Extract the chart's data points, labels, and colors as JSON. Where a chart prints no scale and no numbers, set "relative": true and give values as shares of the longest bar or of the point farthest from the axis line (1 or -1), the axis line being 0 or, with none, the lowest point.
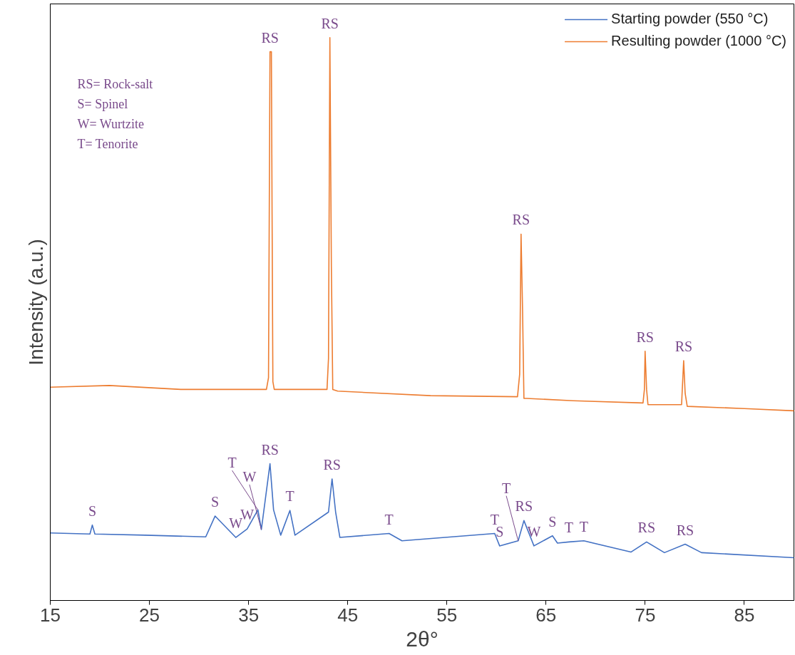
{
  "chart_data": {
    "type": "line",
    "relative": true,
    "xlabel": "2θ°",
    "ylabel": "Intensity (a.u.)",
    "xlim": [
      15,
      90
    ],
    "xticks": [
      15,
      25,
      35,
      45,
      55,
      65,
      75,
      85
    ],
    "grid": false,
    "legend": "top right",
    "line_style": "solid",
    "marker": "none",
    "series": [
      {
        "name": "Starting powder (550 °C)",
        "color": "#4472c4",
        "x": [
          15,
          19.0,
          19.24,
          19.5,
          24.57,
          30.68,
          31.62,
          33.71,
          34.86,
          35.94,
          36.29,
          37.16,
          37.52,
          38.24,
          39.17,
          39.68,
          43.06,
          43.42,
          43.78,
          44.21,
          49.17,
          50.47,
          59.82,
          60.32,
          62.19,
          62.77,
          63.78,
          65.65,
          66.15,
          67.3,
          68.81,
          73.56,
          75.14,
          76.94,
          79.03,
          80.68,
          90
        ],
        "values": [
          0.12,
          0.118,
          0.134,
          0.118,
          0.116,
          0.113,
          0.15,
          0.112,
          0.127,
          0.161,
          0.126,
          0.243,
          0.161,
          0.116,
          0.16,
          0.116,
          0.157,
          0.216,
          0.157,
          0.112,
          0.119,
          0.106,
          0.119,
          0.097,
          0.106,
          0.142,
          0.097,
          0.115,
          0.102,
          0.104,
          0.106,
          0.086,
          0.104,
          0.085,
          0.1,
          0.085,
          0.076
        ]
      },
      {
        "name": "Resulting powder (1000 °C)",
        "color": "#ed7d31",
        "x": [
          15,
          20.97,
          28.17,
          36.8,
          37.01,
          37.16,
          37.3,
          37.37,
          37.45,
          37.59,
          42.91,
          43.06,
          43.2,
          43.35,
          43.49,
          43.99,
          53.35,
          62.12,
          62.34,
          62.48,
          62.63,
          62.77,
          63.06,
          67.73,
          74.78,
          74.92,
          74.99,
          75.14,
          75.28,
          78.67,
          78.74,
          78.88,
          79.03,
          79.24,
          85,
          90
        ],
        "values": [
          0.379,
          0.382,
          0.375,
          0.375,
          0.396,
          0.975,
          0.975,
          0.686,
          0.389,
          0.375,
          0.375,
          0.43,
          1.0,
          0.593,
          0.375,
          0.372,
          0.364,
          0.362,
          0.402,
          0.651,
          0.518,
          0.359,
          0.359,
          0.355,
          0.351,
          0.375,
          0.443,
          0.375,
          0.348,
          0.348,
          0.375,
          0.426,
          0.368,
          0.345,
          0.341,
          0.337
        ]
      }
    ],
    "annotations": [
      "RS= Rock-salt",
      "S= Spinel",
      "W= Wurtzite",
      "T= Tenorite",
      {
        "text": "RS",
        "x": 37.16,
        "y": 0.975
      },
      {
        "text": "RS",
        "x": 43.2,
        "y": 1.0
      },
      {
        "text": "RS",
        "x": 62.48,
        "y": 0.651
      },
      {
        "text": "RS",
        "x": 74.99,
        "y": 0.443
      },
      {
        "text": "RS",
        "x": 78.88,
        "y": 0.426
      },
      {
        "text": "S",
        "x": 19.24,
        "y": 0.134
      },
      {
        "text": "S",
        "x": 31.62,
        "y": 0.15
      },
      {
        "text": "W",
        "x": 33.71,
        "y": 0.112
      },
      {
        "text": "W",
        "x": 34.86,
        "y": 0.127
      },
      {
        "text": "T",
        "x": 35.94,
        "y": 0.161
      },
      {
        "text": "W",
        "x": 36.29,
        "y": 0.126
      },
      {
        "text": "RS",
        "x": 37.16,
        "y": 0.243
      },
      {
        "text": "T",
        "x": 39.17,
        "y": 0.16
      },
      {
        "text": "RS",
        "x": 43.42,
        "y": 0.216
      },
      {
        "text": "T",
        "x": 49.17,
        "y": 0.119
      },
      {
        "text": "T",
        "x": 59.82,
        "y": 0.119
      },
      {
        "text": "S",
        "x": 60.32,
        "y": 0.097
      },
      {
        "text": "T",
        "x": 62.19,
        "y": 0.106
      },
      {
        "text": "RS",
        "x": 62.77,
        "y": 0.142
      },
      {
        "text": "W",
        "x": 63.78,
        "y": 0.097
      },
      {
        "text": "S",
        "x": 65.65,
        "y": 0.115
      },
      {
        "text": "T",
        "x": 67.3,
        "y": 0.104
      },
      {
        "text": "T",
        "x": 68.81,
        "y": 0.106
      },
      {
        "text": "RS",
        "x": 75.14,
        "y": 0.104
      },
      {
        "text": "RS",
        "x": 79.03,
        "y": 0.1
      }
    ]
  }
}
